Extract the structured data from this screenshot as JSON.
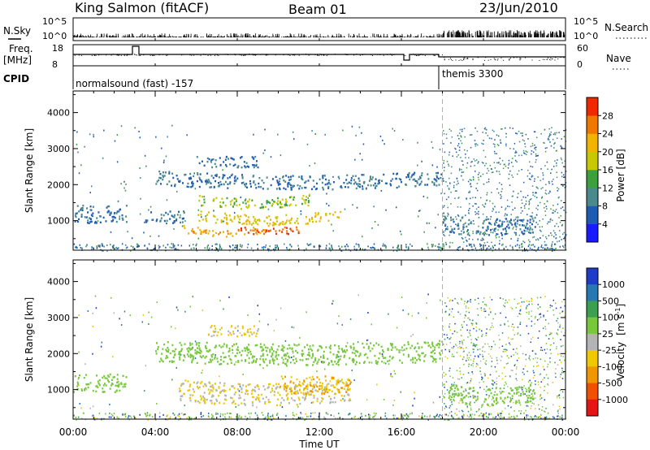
{
  "header": {
    "station": "King Salmon (fitACF)",
    "beam": "Beam 01",
    "date": "23/Jun/2010"
  },
  "top_panels": {
    "nsky_label": "N.Sky",
    "nsky_ticks": [
      "10^5",
      "10^0"
    ],
    "nsearch_label": "N.Search",
    "nsearch_ticks": [
      "10^5",
      "10^0"
    ],
    "freq_label": "Freq.",
    "freq_unit": "[MHz]",
    "freq_ticks": [
      "18",
      "8"
    ],
    "nave_label": "Nave",
    "nave_ticks": [
      "60",
      "0"
    ],
    "cpid_label": "CPID",
    "cpid_segments": [
      {
        "name": "normalsound (fast) -157",
        "start_h": 0
      },
      {
        "name": "themis 3300",
        "start_h": 18
      }
    ]
  },
  "x_axis": {
    "label": "Time UT",
    "ticks": [
      "00:00",
      "04:00",
      "08:00",
      "12:00",
      "16:00",
      "20:00",
      "00:00"
    ],
    "range_h": [
      0,
      24
    ]
  },
  "y_axis": {
    "label": "Slant Range [km]",
    "ticks": [
      "1000",
      "2000",
      "3000",
      "4000"
    ],
    "range_km": [
      180,
      4600
    ]
  },
  "power_scale": {
    "label": "Power [dB]",
    "ticks": [
      "4",
      "8",
      "12",
      "16",
      "20",
      "24",
      "28"
    ],
    "colors": [
      "#1a1aff",
      "#1e5cb4",
      "#4a8a8a",
      "#3ca03c",
      "#c8c800",
      "#f0b400",
      "#f07800",
      "#f02800"
    ]
  },
  "velocity_scale": {
    "label": "Velocity",
    "unit": "[m s",
    "unit_exp": "-1",
    "unit_close": "]",
    "ticks": [
      "1000",
      "500",
      "100",
      "25",
      "-25",
      "-100",
      "-500",
      "-1000"
    ],
    "colors": [
      "#1e3cc8",
      "#2878b4",
      "#3ca050",
      "#78c83c",
      "#b4b4b4",
      "#f0c800",
      "#f09600",
      "#f05000",
      "#e61414"
    ]
  },
  "chart_data": [
    {
      "type": "heatmap",
      "title": "Power [dB]",
      "xlabel": "Time UT",
      "ylabel": "Slant Range [km]",
      "xlim": [
        0,
        24
      ],
      "ylim": [
        180,
        4600
      ],
      "features": [
        {
          "t": [
            0,
            2.6
          ],
          "range": [
            950,
            1450
          ],
          "value": 8
        },
        {
          "t": [
            3.5,
            5.5
          ],
          "range": [
            950,
            1300
          ],
          "value": 8
        },
        {
          "t": [
            5.2,
            9.5
          ],
          "range": [
            700,
            900
          ],
          "value": 24
        },
        {
          "t": [
            8,
            11
          ],
          "range": [
            650,
            850
          ],
          "value": 28
        },
        {
          "t": [
            6,
            13
          ],
          "range": [
            1000,
            1300
          ],
          "value": 20
        },
        {
          "t": [
            6,
            11.5
          ],
          "range": [
            1450,
            1750
          ],
          "value": 16
        },
        {
          "t": [
            4,
            18
          ],
          "range": [
            2000,
            2400
          ],
          "value": 8
        },
        {
          "t": [
            6,
            9
          ],
          "range": [
            2500,
            2800
          ],
          "value": 8
        },
        {
          "t": [
            18,
            22.5
          ],
          "range": [
            700,
            1200
          ],
          "value": 8
        }
      ]
    },
    {
      "type": "heatmap",
      "title": "Velocity [m s-1]",
      "xlabel": "Time UT",
      "ylabel": "Slant Range [km]",
      "xlim": [
        0,
        24
      ],
      "ylim": [
        180,
        4600
      ],
      "features": [
        {
          "t": [
            0,
            2.6
          ],
          "range": [
            950,
            1450
          ],
          "value": 0
        },
        {
          "t": [
            5,
            13.5
          ],
          "range": [
            700,
            1300
          ],
          "value": -100
        },
        {
          "t": [
            10,
            13.5
          ],
          "range": [
            900,
            1400
          ],
          "value": -500
        },
        {
          "t": [
            4,
            18
          ],
          "range": [
            1800,
            2400
          ],
          "value": 0
        },
        {
          "t": [
            6.5,
            9
          ],
          "range": [
            2500,
            2800
          ],
          "value": -100
        },
        {
          "t": [
            18,
            22.5
          ],
          "range": [
            700,
            1200
          ],
          "value": 0
        }
      ]
    }
  ]
}
